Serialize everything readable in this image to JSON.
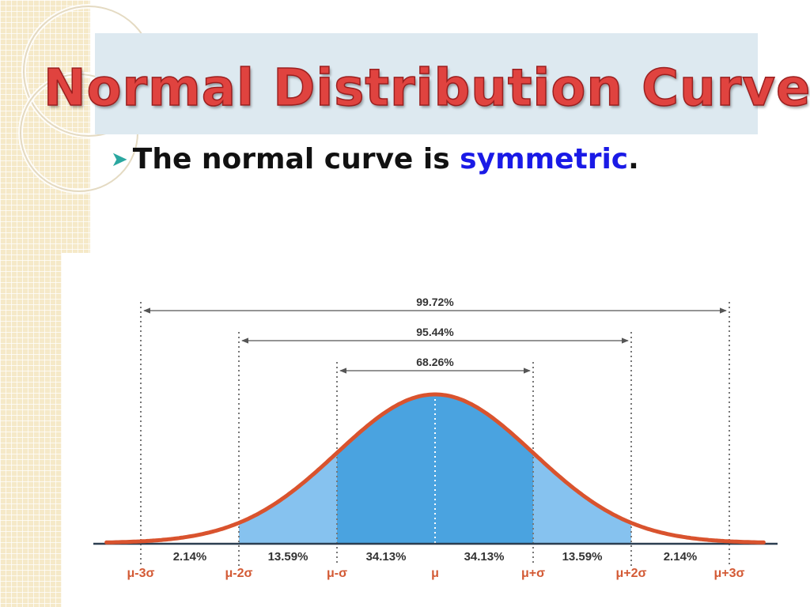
{
  "slide": {
    "title": "Normal Distribution Curve",
    "bullet_icon": "arrow-bullet-icon",
    "bullet_text_before": "The normal curve is ",
    "bullet_keyword": "symmetric",
    "bullet_text_after": "."
  },
  "colors": {
    "title": "#e0433f",
    "keyword": "#1a1ae6",
    "curve": "#d9532e",
    "fill_inner": "#4aa3e0",
    "fill_outer": "#86c2ef",
    "labels": "#d35a35"
  },
  "diagram": {
    "spans": [
      {
        "label": "99.72%",
        "from": -3,
        "to": 3
      },
      {
        "label": "95.44%",
        "from": -2,
        "to": 2
      },
      {
        "label": "68.26%",
        "from": -1,
        "to": 1
      }
    ],
    "bands": [
      {
        "label": "2.14%"
      },
      {
        "label": "13.59%"
      },
      {
        "label": "34.13%"
      },
      {
        "label": "34.13%"
      },
      {
        "label": "13.59%"
      },
      {
        "label": "2.14%"
      }
    ],
    "ticks": [
      "μ-3σ",
      "μ-2σ",
      "μ-σ",
      "μ",
      "μ+σ",
      "μ+2σ",
      "μ+3σ"
    ]
  }
}
